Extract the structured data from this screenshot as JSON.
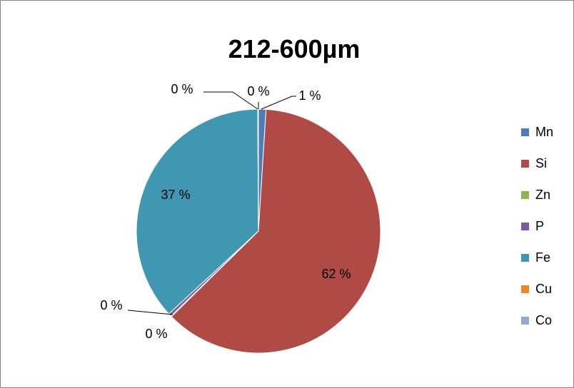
{
  "chart_data": {
    "type": "pie",
    "title": "212-600µm",
    "categories": [
      "Mn",
      "Si",
      "Zn",
      "P",
      "Fe",
      "Cu",
      "Co"
    ],
    "values": [
      1,
      62,
      0.1,
      0.4,
      37,
      0.05,
      0.05
    ],
    "data_labels": [
      "1 %",
      "62 %",
      "0 %",
      "0 %",
      "37 %",
      "0 %",
      "0 %"
    ],
    "colors": [
      "#4a7ebb",
      "#b04a45",
      "#8fb54f",
      "#7a5c9e",
      "#3f97b1",
      "#e8892f",
      "#93a9d0"
    ],
    "legend_position": "right"
  }
}
